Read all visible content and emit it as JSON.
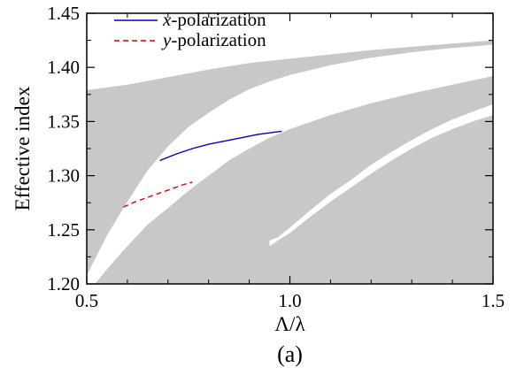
{
  "chart_data": {
    "type": "line",
    "caption": "(a)",
    "xlabel": "Λ/λ",
    "ylabel": "Effective index",
    "xlim": [
      0.5,
      1.5
    ],
    "ylim": [
      1.2,
      1.45
    ],
    "xticks": [
      0.5,
      1.0,
      1.5
    ],
    "xtick_labels": [
      "0.5",
      "1.0",
      "1.5"
    ],
    "yticks": [
      1.2,
      1.25,
      1.3,
      1.35,
      1.4,
      1.45
    ],
    "ytick_labels": [
      "1.20",
      "1.25",
      "1.30",
      "1.35",
      "1.40",
      "1.45"
    ],
    "legend": {
      "placement": "top-left",
      "entries": [
        {
          "label_italic": "x",
          "label_rest": "-polarization",
          "color": "#0000cc",
          "dash": "solid"
        },
        {
          "label_italic": "y",
          "label_rest": "-polarization",
          "color": "#dd0000",
          "dash": "dashed"
        }
      ]
    },
    "series": [
      {
        "name": "x-polarization",
        "color": "#0000cc",
        "style": "solid",
        "x": [
          0.68,
          0.72,
          0.76,
          0.8,
          0.84,
          0.88,
          0.92,
          0.96,
          0.98
        ],
        "y": [
          1.314,
          1.32,
          1.325,
          1.329,
          1.332,
          1.335,
          1.338,
          1.34,
          1.341
        ]
      },
      {
        "name": "y-polarization",
        "color": "#dd0000",
        "style": "dashed",
        "x": [
          0.59,
          0.62,
          0.65,
          0.68,
          0.71,
          0.74,
          0.76
        ],
        "y": [
          1.271,
          1.276,
          1.28,
          1.284,
          1.288,
          1.292,
          1.294
        ]
      }
    ],
    "bandgap_regions": {
      "color": "#c8c8c8",
      "description_note": "",
      "regions": [
        {
          "id": "upper",
          "polygon": [
            [
              0.5,
              1.379
            ],
            [
              0.6,
              1.384
            ],
            [
              0.7,
              1.391
            ],
            [
              0.8,
              1.398
            ],
            [
              0.9,
              1.404
            ],
            [
              1.0,
              1.408
            ],
            [
              1.1,
              1.412
            ],
            [
              1.2,
              1.416
            ],
            [
              1.3,
              1.419
            ],
            [
              1.4,
              1.422
            ],
            [
              1.5,
              1.425
            ],
            [
              1.5,
              1.421
            ],
            [
              1.4,
              1.418
            ],
            [
              1.3,
              1.414
            ],
            [
              1.2,
              1.409
            ],
            [
              1.1,
              1.402
            ],
            [
              1.0,
              1.393
            ],
            [
              0.95,
              1.387
            ],
            [
              0.9,
              1.38
            ],
            [
              0.85,
              1.37
            ],
            [
              0.8,
              1.358
            ],
            [
              0.75,
              1.345
            ],
            [
              0.7,
              1.327
            ],
            [
              0.65,
              1.305
            ],
            [
              0.6,
              1.276
            ],
            [
              0.55,
              1.245
            ],
            [
              0.5,
              1.208
            ]
          ]
        },
        {
          "id": "middle",
          "polygon": [
            [
              0.52,
              1.2
            ],
            [
              0.56,
              1.218
            ],
            [
              0.6,
              1.235
            ],
            [
              0.65,
              1.255
            ],
            [
              0.7,
              1.27
            ],
            [
              0.75,
              1.286
            ],
            [
              0.8,
              1.3
            ],
            [
              0.85,
              1.314
            ],
            [
              0.9,
              1.325
            ],
            [
              0.95,
              1.335
            ],
            [
              1.0,
              1.343
            ],
            [
              1.1,
              1.356
            ],
            [
              1.2,
              1.367
            ],
            [
              1.3,
              1.376
            ],
            [
              1.4,
              1.384
            ],
            [
              1.5,
              1.392
            ],
            [
              1.5,
              1.366
            ],
            [
              1.45,
              1.359
            ],
            [
              1.4,
              1.352
            ],
            [
              1.35,
              1.343
            ],
            [
              1.3,
              1.333
            ],
            [
              1.25,
              1.322
            ],
            [
              1.2,
              1.31
            ],
            [
              1.15,
              1.296
            ],
            [
              1.1,
              1.283
            ],
            [
              1.05,
              1.268
            ],
            [
              1.0,
              1.252
            ],
            [
              0.97,
              1.243
            ],
            [
              0.95,
              1.24
            ],
            [
              0.95,
              1.2
            ]
          ]
        },
        {
          "id": "lower",
          "polygon": [
            [
              0.95,
              1.235
            ],
            [
              0.97,
              1.24
            ],
            [
              1.0,
              1.247
            ],
            [
              1.05,
              1.262
            ],
            [
              1.1,
              1.276
            ],
            [
              1.15,
              1.289
            ],
            [
              1.2,
              1.302
            ],
            [
              1.25,
              1.314
            ],
            [
              1.3,
              1.325
            ],
            [
              1.35,
              1.335
            ],
            [
              1.4,
              1.343
            ],
            [
              1.45,
              1.35
            ],
            [
              1.5,
              1.356
            ],
            [
              1.5,
              1.2
            ],
            [
              0.95,
              1.2
            ]
          ]
        }
      ]
    },
    "grid": false
  }
}
